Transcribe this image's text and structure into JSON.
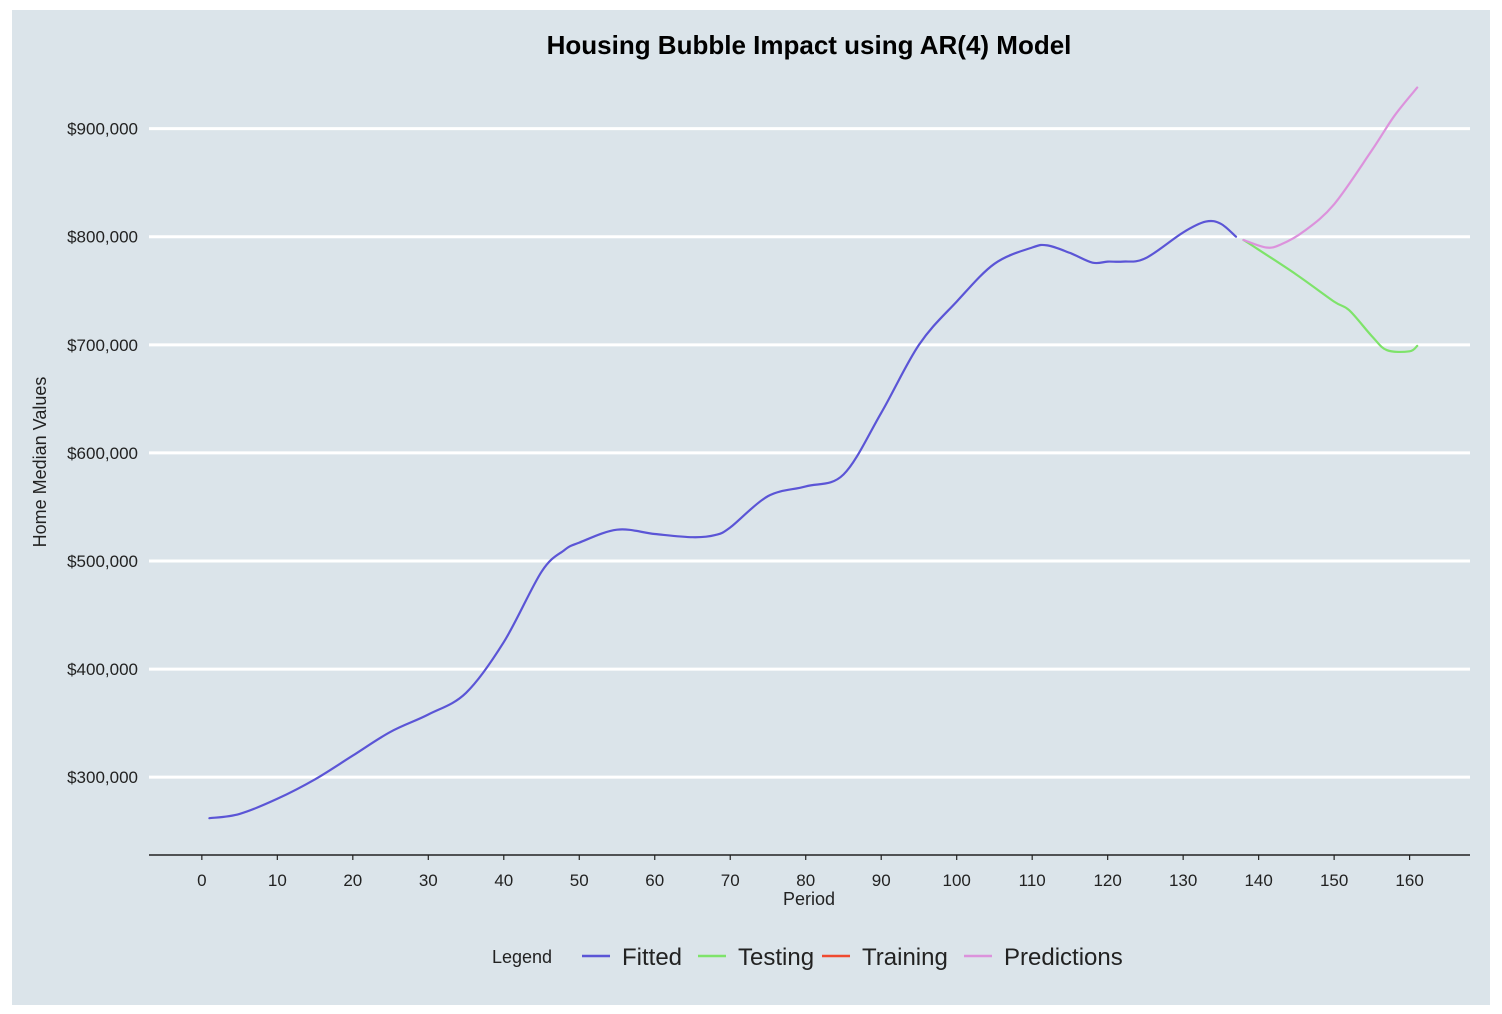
{
  "chart_data": {
    "type": "line",
    "title": "Housing Bubble Impact using AR(4) Model",
    "xlabel": "Period",
    "ylabel": "Home Median Values",
    "xlim": [
      -7,
      168
    ],
    "ylim": [
      228000,
      945000
    ],
    "x_ticks": [
      0,
      10,
      20,
      30,
      40,
      50,
      60,
      70,
      80,
      90,
      100,
      110,
      120,
      130,
      140,
      150,
      160
    ],
    "y_ticks": [
      300000,
      400000,
      500000,
      600000,
      700000,
      800000,
      900000
    ],
    "y_tick_labels": [
      "$300,000",
      "$400,000",
      "$500,000",
      "$600,000",
      "$700,000",
      "$800,000",
      "$900,000"
    ],
    "grid": "horizontal",
    "legend_placement": "bottom",
    "legend_title": "Legend",
    "series": [
      {
        "name": "Fitted",
        "color": "#5b55d6",
        "x": [
          1,
          5,
          10,
          15,
          20,
          25,
          30,
          35,
          40,
          45,
          48,
          50,
          55,
          60,
          65,
          68,
          70,
          75,
          80,
          85,
          90,
          95,
          100,
          105,
          110,
          112,
          115,
          118,
          120,
          122,
          125,
          130,
          133,
          135,
          137
        ],
        "y": [
          262000,
          266000,
          280000,
          298000,
          320000,
          342000,
          358000,
          378000,
          425000,
          490000,
          510000,
          517000,
          529000,
          525000,
          522000,
          524000,
          531000,
          560000,
          569000,
          580000,
          637000,
          700000,
          740000,
          775000,
          790000,
          792000,
          785000,
          776000,
          777000,
          777000,
          780000,
          804000,
          814000,
          812000,
          800000
        ]
      },
      {
        "name": "Testing",
        "color": "#7ee36a",
        "x": [
          138,
          140,
          145,
          150,
          152,
          155,
          157,
          160,
          161
        ],
        "y": [
          797000,
          788000,
          765000,
          740000,
          732000,
          708000,
          695000,
          694000,
          699000
        ]
      },
      {
        "name": "Training",
        "color": "#f04a30",
        "x": [],
        "y": []
      },
      {
        "name": "Predictions",
        "color": "#dc92dc",
        "x": [
          138,
          141,
          143,
          146,
          150,
          155,
          158,
          161
        ],
        "y": [
          797000,
          790000,
          793000,
          805000,
          830000,
          880000,
          912000,
          938000
        ]
      }
    ]
  }
}
